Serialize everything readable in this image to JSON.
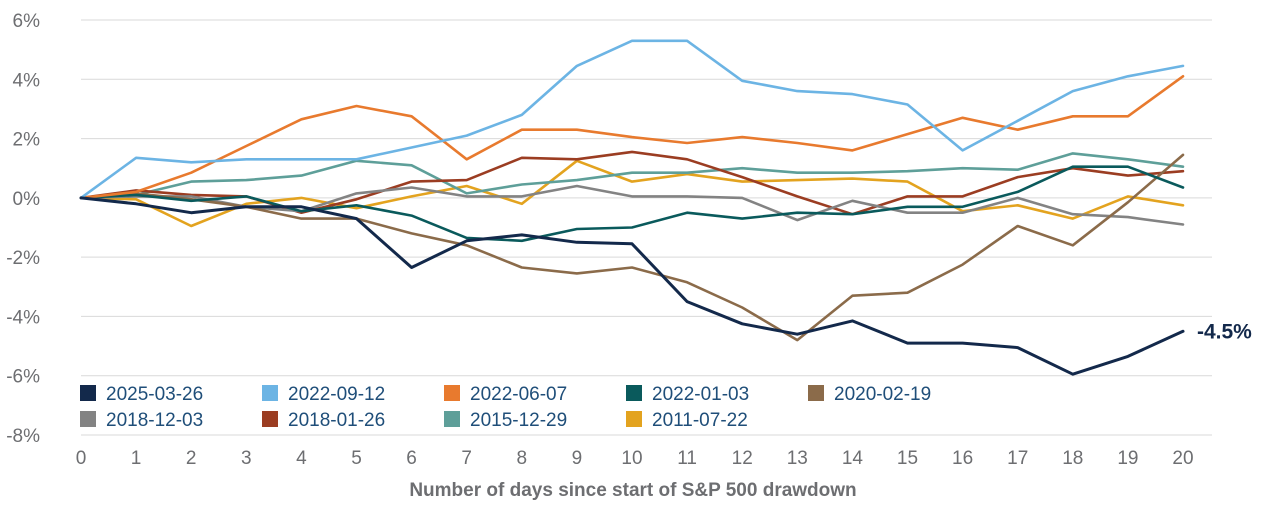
{
  "chart_data": {
    "type": "line",
    "title": "",
    "xlabel": "Number of days since start of S&P 500 drawdown",
    "ylabel": "",
    "x": [
      0,
      1,
      2,
      3,
      4,
      5,
      6,
      7,
      8,
      9,
      10,
      11,
      12,
      13,
      14,
      15,
      16,
      17,
      18,
      19,
      20
    ],
    "ylim": [
      -8,
      6
    ],
    "yticks": [
      6,
      4,
      2,
      0,
      -2,
      -4,
      -6,
      -8
    ],
    "ytick_labels": [
      "6%",
      "4%",
      "2%",
      "0%",
      "-2%",
      "-4%",
      "-6%",
      "-8%"
    ],
    "grid": true,
    "legend_position": "bottom-left",
    "end_label": {
      "series": "2025-03-26",
      "text": "-4.5%"
    },
    "series": [
      {
        "name": "2025-03-26",
        "color": "#13294b",
        "values": [
          0,
          -0.2,
          -0.5,
          -0.3,
          -0.3,
          -0.7,
          -2.35,
          -1.45,
          -1.25,
          -1.5,
          -1.55,
          -3.5,
          -4.25,
          -4.6,
          -4.15,
          -4.9,
          -4.9,
          -5.05,
          -5.95,
          -5.35,
          -4.5
        ]
      },
      {
        "name": "2022-09-12",
        "color": "#6cb4e4",
        "values": [
          0,
          1.35,
          1.2,
          1.3,
          1.3,
          1.3,
          1.7,
          2.1,
          2.8,
          4.45,
          5.3,
          5.3,
          3.95,
          3.6,
          3.5,
          3.15,
          1.6,
          2.6,
          3.6,
          4.1,
          4.45
        ]
      },
      {
        "name": "2022-06-07",
        "color": "#e87a2e",
        "values": [
          0,
          0.2,
          0.85,
          1.75,
          2.65,
          3.1,
          2.75,
          1.3,
          2.3,
          2.3,
          2.05,
          1.85,
          2.05,
          1.85,
          1.6,
          2.15,
          2.7,
          2.3,
          2.75,
          2.75,
          4.1
        ]
      },
      {
        "name": "2022-01-03",
        "color": "#0a5a5c",
        "values": [
          0,
          0.1,
          -0.1,
          0.05,
          -0.45,
          -0.25,
          -0.6,
          -1.35,
          -1.45,
          -1.05,
          -1.0,
          -0.5,
          -0.7,
          -0.5,
          -0.55,
          -0.3,
          -0.3,
          0.2,
          1.05,
          1.05,
          0.35
        ]
      },
      {
        "name": "2020-02-19",
        "color": "#8b6b4a",
        "values": [
          0,
          0.15,
          -0.05,
          -0.3,
          -0.7,
          -0.7,
          -1.2,
          -1.6,
          -2.35,
          -2.55,
          -2.35,
          -2.85,
          -3.7,
          -4.8,
          -3.3,
          -3.2,
          -2.25,
          -0.95,
          -1.6,
          -0.15,
          1.45
        ]
      },
      {
        "name": "2018-12-03",
        "color": "#838383",
        "values": [
          0,
          0.05,
          0.05,
          -0.3,
          -0.45,
          0.15,
          0.35,
          0.05,
          0.05,
          0.4,
          0.05,
          0.05,
          0.0,
          -0.75,
          -0.1,
          -0.5,
          -0.5,
          0.0,
          -0.55,
          -0.65,
          -0.9
        ]
      },
      {
        "name": "2018-01-26",
        "color": "#9b3d22",
        "values": [
          0,
          0.25,
          0.1,
          0.05,
          -0.5,
          -0.05,
          0.55,
          0.6,
          1.35,
          1.3,
          1.55,
          1.3,
          0.7,
          0.05,
          -0.55,
          0.05,
          0.05,
          0.7,
          1.0,
          0.75,
          0.9
        ]
      },
      {
        "name": "2015-12-29",
        "color": "#5e9f99",
        "values": [
          0,
          0.1,
          0.55,
          0.6,
          0.75,
          1.25,
          1.1,
          0.15,
          0.45,
          0.6,
          0.85,
          0.85,
          1.0,
          0.85,
          0.85,
          0.9,
          1.0,
          0.95,
          1.5,
          1.3,
          1.05
        ]
      },
      {
        "name": "2011-07-22",
        "color": "#e3a31f",
        "values": [
          0,
          -0.05,
          -0.95,
          -0.2,
          0.0,
          -0.35,
          0.05,
          0.4,
          -0.2,
          1.25,
          0.55,
          0.8,
          0.55,
          0.6,
          0.65,
          0.55,
          -0.45,
          -0.25,
          -0.7,
          0.05,
          -0.25
        ]
      }
    ]
  }
}
